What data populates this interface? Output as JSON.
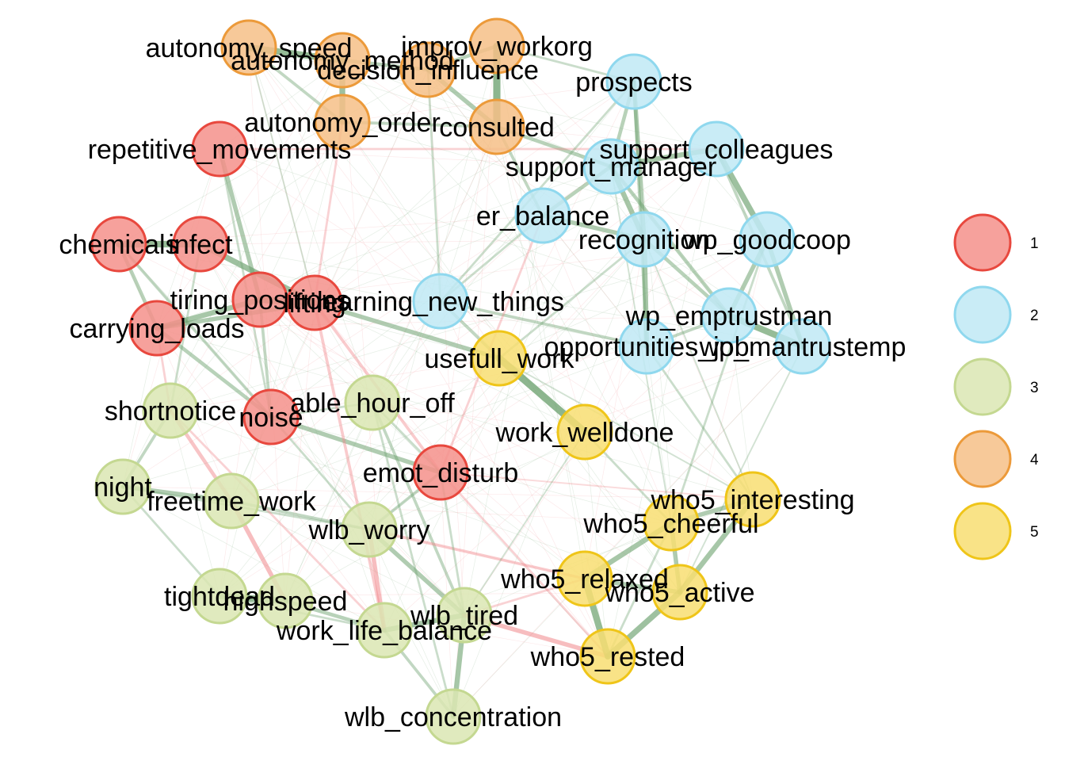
{
  "groups": [
    {
      "id": "1",
      "label": "1",
      "fill": "#f4908b",
      "stroke": "#e8483e"
    },
    {
      "id": "2",
      "label": "2",
      "fill": "#bfe9f5",
      "stroke": "#8fd8ee"
    },
    {
      "id": "3",
      "label": "3",
      "fill": "#dbe6b3",
      "stroke": "#c4d891"
    },
    {
      "id": "4",
      "label": "4",
      "fill": "#f6bf87",
      "stroke": "#ec9a3a"
    },
    {
      "id": "5",
      "label": "5",
      "fill": "#f8de72",
      "stroke": "#efc519"
    }
  ],
  "edge_colors": {
    "positive": "#6fa371",
    "negative": "#f0868a"
  },
  "nodes": [
    {
      "id": "autonomy_speed",
      "label": "autonomy_speed",
      "group": "4"
    },
    {
      "id": "autonomy_method",
      "label": "autonomy_method",
      "group": "4"
    },
    {
      "id": "decision_influence",
      "label": "decision_influence",
      "group": "4"
    },
    {
      "id": "improv_workorg",
      "label": "improv_workorg",
      "group": "4"
    },
    {
      "id": "autonomy_order",
      "label": "autonomy_order",
      "group": "4"
    },
    {
      "id": "consulted",
      "label": "consulted",
      "group": "4"
    },
    {
      "id": "repetitive_movements",
      "label": "repetitive_movements",
      "group": "1"
    },
    {
      "id": "chemicals",
      "label": "chemicals",
      "group": "1"
    },
    {
      "id": "infect",
      "label": "infect",
      "group": "1"
    },
    {
      "id": "tiring_positions",
      "label": "tiring_positions",
      "group": "1"
    },
    {
      "id": "lifting",
      "label": "lifting",
      "group": "1"
    },
    {
      "id": "carrying_loads",
      "label": "carrying_loads",
      "group": "1"
    },
    {
      "id": "noise",
      "label": "noise",
      "group": "1"
    },
    {
      "id": "emot_disturb",
      "label": "emot_disturb",
      "group": "1"
    },
    {
      "id": "prospects",
      "label": "prospects",
      "group": "2"
    },
    {
      "id": "support_colleagues",
      "label": "support_colleagues",
      "group": "2"
    },
    {
      "id": "support_manager",
      "label": "support_manager",
      "group": "2"
    },
    {
      "id": "er_balance",
      "label": "er_balance",
      "group": "2"
    },
    {
      "id": "recognition",
      "label": "recognition",
      "group": "2"
    },
    {
      "id": "wp_goodcoop",
      "label": "wp_goodcoop",
      "group": "2"
    },
    {
      "id": "learning_new_things",
      "label": "learning_new_things",
      "group": "2"
    },
    {
      "id": "wp_emptrustman",
      "label": "wp_emptrustman",
      "group": "2"
    },
    {
      "id": "opportunities_job",
      "label": "opportunities_job",
      "group": "2"
    },
    {
      "id": "wp_mantrustemp",
      "label": "wp_mantrustemp",
      "group": "2"
    },
    {
      "id": "shortnotice",
      "label": "shortnotice",
      "group": "3"
    },
    {
      "id": "able_hour_off",
      "label": "able_hour_off",
      "group": "3"
    },
    {
      "id": "night",
      "label": "night",
      "group": "3"
    },
    {
      "id": "freetime_work",
      "label": "freetime_work",
      "group": "3"
    },
    {
      "id": "wlb_worry",
      "label": "wlb_worry",
      "group": "3"
    },
    {
      "id": "tightdead",
      "label": "tightdead",
      "group": "3"
    },
    {
      "id": "highspeed",
      "label": "highspeed",
      "group": "3"
    },
    {
      "id": "work_life_balance",
      "label": "work_life_balance",
      "group": "3"
    },
    {
      "id": "wlb_tired",
      "label": "wlb_tired",
      "group": "3"
    },
    {
      "id": "wlb_concentration",
      "label": "wlb_concentration",
      "group": "3"
    },
    {
      "id": "usefull_work",
      "label": "usefull_work",
      "group": "5"
    },
    {
      "id": "work_welldone",
      "label": "work_welldone",
      "group": "5"
    },
    {
      "id": "who5_interesting",
      "label": "who5_interesting",
      "group": "5"
    },
    {
      "id": "who5_cheerful",
      "label": "who5_cheerful",
      "group": "5"
    },
    {
      "id": "who5_relaxed",
      "label": "who5_relaxed",
      "group": "5"
    },
    {
      "id": "who5_active",
      "label": "who5_active",
      "group": "5"
    },
    {
      "id": "who5_rested",
      "label": "who5_rested",
      "group": "5"
    }
  ],
  "edges": [
    {
      "from": "autonomy_speed",
      "to": "autonomy_method",
      "sign": "positive",
      "weight": 0.8
    },
    {
      "from": "autonomy_method",
      "to": "autonomy_order",
      "sign": "positive",
      "weight": 0.7
    },
    {
      "from": "autonomy_speed",
      "to": "autonomy_order",
      "sign": "positive",
      "weight": 0.3
    },
    {
      "from": "autonomy_method",
      "to": "decision_influence",
      "sign": "positive",
      "weight": 0.4
    },
    {
      "from": "decision_influence",
      "to": "improv_workorg",
      "sign": "positive",
      "weight": 0.4
    },
    {
      "from": "improv_workorg",
      "to": "consulted",
      "sign": "positive",
      "weight": 0.9
    },
    {
      "from": "decision_influence",
      "to": "consulted",
      "sign": "positive",
      "weight": 0.5
    },
    {
      "from": "autonomy_order",
      "to": "consulted",
      "sign": "positive",
      "weight": 0.3
    },
    {
      "from": "consulted",
      "to": "support_manager",
      "sign": "positive",
      "weight": 0.4
    },
    {
      "from": "consulted",
      "to": "er_balance",
      "sign": "positive",
      "weight": 0.3
    },
    {
      "from": "improv_workorg",
      "to": "prospects",
      "sign": "positive",
      "weight": 0.2
    },
    {
      "from": "decision_influence",
      "to": "learning_new_things",
      "sign": "positive",
      "weight": 0.2
    },
    {
      "from": "autonomy_speed",
      "to": "lifting",
      "sign": "positive",
      "weight": 0.1
    },
    {
      "from": "prospects",
      "to": "support_manager",
      "sign": "positive",
      "weight": 0.4
    },
    {
      "from": "prospects",
      "to": "recognition",
      "sign": "positive",
      "weight": 0.5
    },
    {
      "from": "prospects",
      "to": "opportunities_job",
      "sign": "positive",
      "weight": 0.3
    },
    {
      "from": "support_colleagues",
      "to": "support_manager",
      "sign": "positive",
      "weight": 0.6
    },
    {
      "from": "support_colleagues",
      "to": "wp_goodcoop",
      "sign": "positive",
      "weight": 0.7
    },
    {
      "from": "support_colleagues",
      "to": "wp_mantrustemp",
      "sign": "positive",
      "weight": 0.3
    },
    {
      "from": "support_manager",
      "to": "recognition",
      "sign": "positive",
      "weight": 0.6
    },
    {
      "from": "support_manager",
      "to": "er_balance",
      "sign": "positive",
      "weight": 0.4
    },
    {
      "from": "support_manager",
      "to": "wp_emptrustman",
      "sign": "positive",
      "weight": 0.4
    },
    {
      "from": "er_balance",
      "to": "recognition",
      "sign": "positive",
      "weight": 0.5
    },
    {
      "from": "er_balance",
      "to": "learning_new_things",
      "sign": "positive",
      "weight": 0.2
    },
    {
      "from": "recognition",
      "to": "opportunities_job",
      "sign": "positive",
      "weight": 0.6
    },
    {
      "from": "recognition",
      "to": "wp_emptrustman",
      "sign": "positive",
      "weight": 0.4
    },
    {
      "from": "wp_goodcoop",
      "to": "wp_emptrustman",
      "sign": "positive",
      "weight": 0.5
    },
    {
      "from": "wp_goodcoop",
      "to": "wp_mantrustemp",
      "sign": "positive",
      "weight": 0.5
    },
    {
      "from": "wp_emptrustman",
      "to": "wp_mantrustemp",
      "sign": "positive",
      "weight": 0.8
    },
    {
      "from": "opportunities_job",
      "to": "wp_emptrustman",
      "sign": "positive",
      "weight": 0.3
    },
    {
      "from": "learning_new_things",
      "to": "opportunities_job",
      "sign": "positive",
      "weight": 0.3
    },
    {
      "from": "learning_new_things",
      "to": "usefull_work",
      "sign": "positive",
      "weight": 0.3
    },
    {
      "from": "lifting",
      "to": "usefull_work",
      "sign": "positive",
      "weight": 0.5
    },
    {
      "from": "usefull_work",
      "to": "work_welldone",
      "sign": "positive",
      "weight": 0.9
    },
    {
      "from": "work_welldone",
      "to": "who5_cheerful",
      "sign": "positive",
      "weight": 0.2
    },
    {
      "from": "usefull_work",
      "to": "recognition",
      "sign": "positive",
      "weight": 0.2
    },
    {
      "from": "chemicals",
      "to": "infect",
      "sign": "positive",
      "weight": 0.8
    },
    {
      "from": "chemicals",
      "to": "carrying_loads",
      "sign": "positive",
      "weight": 0.4
    },
    {
      "from": "infect",
      "to": "lifting",
      "sign": "positive",
      "weight": 0.7
    },
    {
      "from": "tiring_positions",
      "to": "lifting",
      "sign": "positive",
      "weight": 0.8
    },
    {
      "from": "tiring_positions",
      "to": "carrying_loads",
      "sign": "positive",
      "weight": 0.6
    },
    {
      "from": "lifting",
      "to": "carrying_loads",
      "sign": "positive",
      "weight": 0.5
    },
    {
      "from": "repetitive_movements",
      "to": "tiring_positions",
      "sign": "positive",
      "weight": 0.5
    },
    {
      "from": "repetitive_movements",
      "to": "support_colleagues",
      "sign": "negative",
      "weight": 0.2
    },
    {
      "from": "carrying_loads",
      "to": "noise",
      "sign": "positive",
      "weight": 0.4
    },
    {
      "from": "noise",
      "to": "emot_disturb",
      "sign": "positive",
      "weight": 0.5
    },
    {
      "from": "lifting",
      "to": "emot_disturb",
      "sign": "negative",
      "weight": 0.3
    },
    {
      "from": "infect",
      "to": "shortnotice",
      "sign": "positive",
      "weight": 0.2
    },
    {
      "from": "emot_disturb",
      "to": "wlb_worry",
      "sign": "positive",
      "weight": 0.3
    },
    {
      "from": "emot_disturb",
      "to": "who5_rested",
      "sign": "negative",
      "weight": 0.2
    },
    {
      "from": "shortnotice",
      "to": "freetime_work",
      "sign": "negative",
      "weight": 0.4
    },
    {
      "from": "shortnotice",
      "to": "night",
      "sign": "positive",
      "weight": 0.3
    },
    {
      "from": "night",
      "to": "freetime_work",
      "sign": "positive",
      "weight": 0.5
    },
    {
      "from": "night",
      "to": "wlb_worry",
      "sign": "positive",
      "weight": 0.2
    },
    {
      "from": "freetime_work",
      "to": "highspeed",
      "sign": "negative",
      "weight": 0.5
    },
    {
      "from": "freetime_work",
      "to": "wlb_worry",
      "sign": "positive",
      "weight": 0.3
    },
    {
      "from": "able_hour_off",
      "to": "noise",
      "sign": "positive",
      "weight": 0.2
    },
    {
      "from": "able_hour_off",
      "to": "wlb_tired",
      "sign": "positive",
      "weight": 0.3
    },
    {
      "from": "lifting",
      "to": "work_life_balance",
      "sign": "negative",
      "weight": 0.3
    },
    {
      "from": "wlb_worry",
      "to": "work_life_balance",
      "sign": "negative",
      "weight": 0.5
    },
    {
      "from": "wlb_worry",
      "to": "wlb_tired",
      "sign": "positive",
      "weight": 0.5
    },
    {
      "from": "tightdead",
      "to": "highspeed",
      "sign": "positive",
      "weight": 0.8
    },
    {
      "from": "highspeed",
      "to": "work_life_balance",
      "sign": "positive",
      "weight": 0.4
    },
    {
      "from": "work_life_balance",
      "to": "wlb_tired",
      "sign": "positive",
      "weight": 0.6
    },
    {
      "from": "work_life_balance",
      "to": "wlb_concentration",
      "sign": "positive",
      "weight": 0.3
    },
    {
      "from": "wlb_tired",
      "to": "wlb_concentration",
      "sign": "positive",
      "weight": 0.6
    },
    {
      "from": "wlb_tired",
      "to": "who5_rested",
      "sign": "negative",
      "weight": 0.5
    },
    {
      "from": "wlb_tired",
      "to": "who5_relaxed",
      "sign": "negative",
      "weight": 0.2
    },
    {
      "from": "wlb_worry",
      "to": "who5_relaxed",
      "sign": "negative",
      "weight": 0.3
    },
    {
      "from": "tightdead",
      "to": "work_life_balance",
      "sign": "positive",
      "weight": 0.2
    },
    {
      "from": "who5_interesting",
      "to": "who5_cheerful",
      "sign": "positive",
      "weight": 0.5
    },
    {
      "from": "who5_interesting",
      "to": "who5_active",
      "sign": "positive",
      "weight": 0.6
    },
    {
      "from": "who5_cheerful",
      "to": "who5_relaxed",
      "sign": "positive",
      "weight": 0.6
    },
    {
      "from": "who5_cheerful",
      "to": "who5_active",
      "sign": "positive",
      "weight": 0.5
    },
    {
      "from": "who5_relaxed",
      "to": "who5_active",
      "sign": "positive",
      "weight": 0.5
    },
    {
      "from": "who5_relaxed",
      "to": "who5_rested",
      "sign": "positive",
      "weight": 0.8
    },
    {
      "from": "who5_active",
      "to": "who5_rested",
      "sign": "positive",
      "weight": 0.7
    },
    {
      "from": "who5_cheerful",
      "to": "who5_rested",
      "sign": "positive",
      "weight": 0.2
    },
    {
      "from": "wp_goodcoop",
      "to": "who5_cheerful",
      "sign": "positive",
      "weight": 0.2
    },
    {
      "from": "opportunities_job",
      "to": "who5_interesting",
      "sign": "positive",
      "weight": 0.2
    },
    {
      "from": "emot_disturb",
      "to": "who5_interesting",
      "sign": "negative",
      "weight": 0.1
    },
    {
      "from": "carrying_loads",
      "to": "shortnotice",
      "sign": "negative",
      "weight": 0.2
    },
    {
      "from": "chemicals",
      "to": "noise",
      "sign": "positive",
      "weight": 0.3
    },
    {
      "from": "tiring_positions",
      "to": "noise",
      "sign": "positive",
      "weight": 0.3
    },
    {
      "from": "repetitive_movements",
      "to": "noise",
      "sign": "positive",
      "weight": 0.2
    },
    {
      "from": "autonomy_order",
      "to": "lifting",
      "sign": "negative",
      "weight": 0.2
    },
    {
      "from": "prospects",
      "to": "learning_new_things",
      "sign": "positive",
      "weight": 0.2
    },
    {
      "from": "er_balance",
      "to": "emot_disturb",
      "sign": "negative",
      "weight": 0.2
    },
    {
      "from": "able_hour_off",
      "to": "emot_disturb",
      "sign": "positive",
      "weight": 0.2
    },
    {
      "from": "shortnotice",
      "to": "work_life_balance",
      "sign": "negative",
      "weight": 0.2
    },
    {
      "from": "support_manager",
      "to": "who5_cheerful",
      "sign": "positive",
      "weight": 0.1
    },
    {
      "from": "recognition",
      "to": "who5_interesting",
      "sign": "positive",
      "weight": 0.1
    },
    {
      "from": "wp_mantrustemp",
      "to": "who5_active",
      "sign": "positive",
      "weight": 0.1
    },
    {
      "from": "night",
      "to": "tightdead",
      "sign": "positive",
      "weight": 0.2
    },
    {
      "from": "noise",
      "to": "wlb_worry",
      "sign": "positive",
      "weight": 0.2
    },
    {
      "from": "emot_disturb",
      "to": "wlb_tired",
      "sign": "positive",
      "weight": 0.2
    },
    {
      "from": "able_hour_off",
      "to": "wlb_concentration",
      "sign": "positive",
      "weight": 0.2
    },
    {
      "from": "work_welldone",
      "to": "wlb_tired",
      "sign": "positive",
      "weight": 0.1
    },
    {
      "from": "usefull_work",
      "to": "who5_interesting",
      "sign": "positive",
      "weight": 0.1
    }
  ]
}
